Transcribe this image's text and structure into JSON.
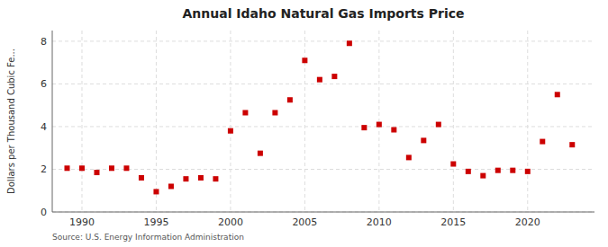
{
  "chart_data": {
    "type": "scatter",
    "title": "Annual Idaho Natural Gas Imports Price",
    "ylabel": "Dollars per Thousand Cubic Fe...",
    "annotations": [
      "Source: U.S. Energy Information Administration"
    ],
    "x": [
      1989,
      1990,
      1991,
      1992,
      1993,
      1994,
      1995,
      1996,
      1997,
      1998,
      1999,
      2000,
      2001,
      2002,
      2003,
      2004,
      2005,
      2006,
      2007,
      2008,
      2009,
      2010,
      2011,
      2012,
      2013,
      2014,
      2015,
      2016,
      2017,
      2018,
      2019,
      2020,
      2021,
      2022,
      2023
    ],
    "values": [
      2.05,
      2.05,
      1.85,
      2.05,
      2.05,
      1.6,
      0.95,
      1.2,
      1.55,
      1.6,
      1.55,
      3.8,
      4.65,
      2.75,
      4.65,
      5.25,
      7.1,
      6.2,
      6.35,
      7.9,
      3.95,
      4.1,
      3.85,
      2.55,
      3.35,
      4.1,
      2.25,
      1.9,
      1.7,
      1.95,
      1.95,
      1.9,
      3.3,
      5.5,
      3.15
    ],
    "color": "#cc0000",
    "marker": "square",
    "xlim": [
      1988.0,
      2024.5
    ],
    "ylim": [
      0,
      8.5
    ],
    "xticks": [
      1990,
      1995,
      2000,
      2005,
      2010,
      2015,
      2020
    ],
    "yticks": [
      0,
      2,
      4,
      6,
      8
    ],
    "grid": true
  }
}
